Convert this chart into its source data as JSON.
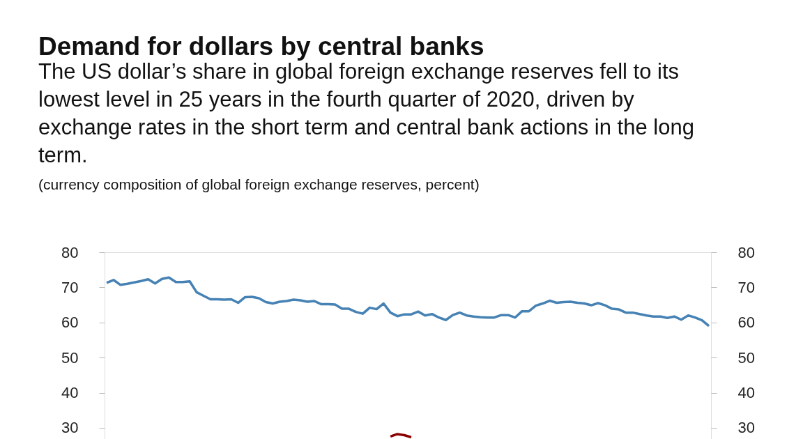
{
  "chart_data": {
    "type": "line",
    "title": "Demand for dollars by central banks",
    "subtitle": "The US dollar’s share in global foreign exchange reserves fell to its lowest level in 25 years in the fourth quarter of 2020, driven by exchange rates in the short term and central bank actions in the long term.",
    "annotations": [
      "(currency composition of global foreign exchange reserves, percent)"
    ],
    "categories": [
      null,
      null,
      null,
      null,
      null,
      null,
      null,
      null,
      null,
      null,
      null,
      null,
      null,
      null,
      null,
      null,
      null,
      null,
      null,
      null,
      null,
      null,
      null,
      null,
      null,
      null,
      null,
      null,
      null,
      null,
      null,
      null,
      null,
      null,
      null,
      null,
      null,
      null,
      null,
      null,
      null,
      null,
      null,
      null,
      null,
      null,
      null,
      null,
      null,
      null,
      null,
      null,
      null,
      null,
      null,
      null,
      null,
      null,
      null,
      null,
      null,
      null,
      null,
      null,
      null,
      null,
      null,
      null,
      null,
      null,
      null,
      null,
      null,
      null,
      null,
      null,
      null,
      null,
      null,
      null,
      null,
      null,
      null,
      null,
      null,
      null,
      null,
      null
    ],
    "series": [
      {
        "color": "#4682b4",
        "values": [
          71.3,
          72.1,
          70.7,
          71.0,
          71.4,
          71.8,
          72.3,
          71.1,
          72.4,
          72.8,
          71.5,
          71.5,
          71.7,
          68.6,
          67.6,
          66.6,
          66.6,
          66.5,
          66.6,
          65.6,
          67.2,
          67.3,
          66.9,
          65.8,
          65.4,
          65.9,
          66.1,
          66.5,
          66.3,
          65.9,
          66.1,
          65.2,
          65.2,
          65.1,
          63.9,
          63.9,
          63.0,
          62.5,
          64.2,
          63.8,
          65.4,
          62.8,
          61.8,
          62.3,
          62.3,
          63.1,
          62.0,
          62.4,
          61.4,
          60.7,
          62.1,
          62.8,
          62.0,
          61.7,
          61.5,
          61.4,
          61.4,
          62.1,
          62.1,
          61.4,
          63.2,
          63.2,
          64.8,
          65.4,
          66.2,
          65.6,
          65.8,
          65.9,
          65.6,
          65.4,
          64.9,
          65.5,
          64.9,
          63.9,
          63.7,
          62.8,
          62.8,
          62.4,
          62.0,
          61.7,
          61.7,
          61.3,
          61.7,
          60.8,
          62.0,
          61.4,
          60.6,
          59.0
        ]
      },
      {
        "color": "#8b0000",
        "values": [
          null,
          null,
          null,
          null,
          null,
          null,
          null,
          null,
          null,
          null,
          null,
          null,
          null,
          null,
          null,
          null,
          null,
          null,
          null,
          null,
          null,
          null,
          null,
          null,
          null,
          null,
          null,
          null,
          null,
          null,
          null,
          null,
          null,
          null,
          null,
          null,
          null,
          null,
          null,
          null,
          null,
          27.5,
          28.2,
          27.9,
          27.3,
          null,
          null,
          null,
          null,
          null,
          null,
          null,
          null,
          null,
          null,
          null,
          null,
          null,
          null,
          null,
          null,
          null,
          null,
          null,
          null,
          null,
          null,
          null,
          null,
          null,
          null,
          null,
          null,
          null,
          null,
          null,
          null,
          null,
          null,
          null,
          null,
          null,
          null,
          null,
          null,
          null,
          null,
          null
        ]
      }
    ],
    "ylim": [
      26.8,
      80
    ],
    "yticks": [
      30,
      40,
      50,
      60,
      70,
      80
    ],
    "y2lim": [
      26.8,
      80
    ],
    "y2ticks": [
      30,
      40,
      50,
      60,
      70,
      80
    ],
    "tick_labels": "y",
    "grid": false
  }
}
